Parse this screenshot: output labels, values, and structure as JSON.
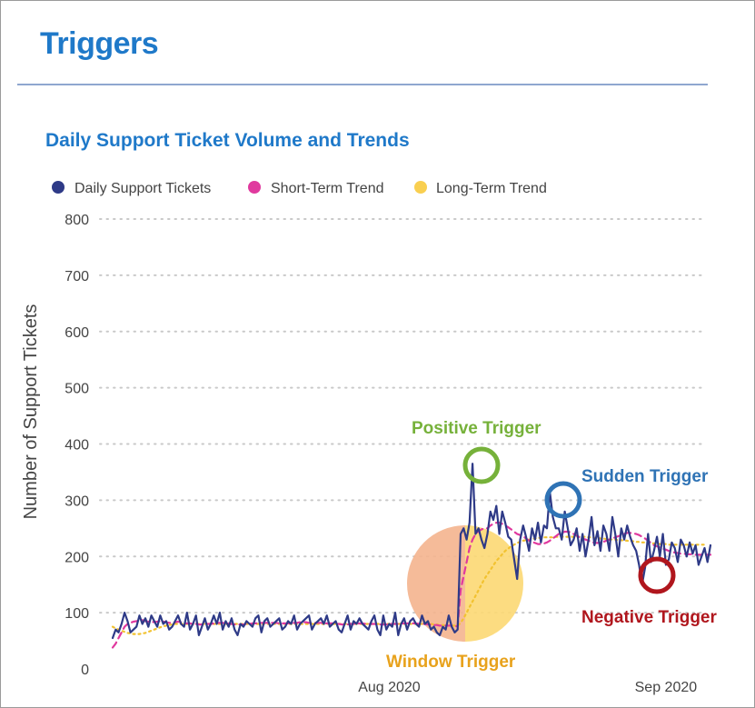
{
  "page": {
    "title": "Triggers"
  },
  "chart_data": {
    "type": "line",
    "title": "Daily Support Ticket Volume and Trends",
    "ylabel": "Number of Support Tickets",
    "xlabel": "",
    "ylim": [
      0,
      800
    ],
    "yticks": [
      0,
      100,
      200,
      300,
      400,
      500,
      600,
      700,
      800
    ],
    "xticks": [
      {
        "label": "Aug 2020",
        "day": 31
      },
      {
        "label": "Sep 2020",
        "day": 62
      }
    ],
    "grid": true,
    "legend_position": "top-left",
    "series": [
      {
        "name": "Daily Support Tickets",
        "color": "#2e3a87",
        "values": [
          55,
          70,
          65,
          80,
          100,
          85,
          65,
          70,
          75,
          95,
          80,
          90,
          75,
          95,
          85,
          75,
          95,
          80,
          85,
          70,
          75,
          85,
          95,
          80,
          75,
          100,
          70,
          80,
          95,
          60,
          75,
          90,
          70,
          80,
          95,
          80,
          100,
          70,
          85,
          75,
          90,
          70,
          60,
          80,
          75,
          85,
          80,
          75,
          90,
          95,
          65,
          85,
          90,
          75,
          80,
          85,
          90,
          70,
          75,
          85,
          80,
          95,
          70,
          80,
          85,
          90,
          95,
          70,
          80,
          85,
          90,
          80,
          95,
          75,
          80,
          85,
          70,
          65,
          80,
          95,
          70,
          85,
          80,
          90,
          80,
          75,
          70,
          85,
          95,
          70,
          60,
          95,
          70,
          80,
          75,
          100,
          60,
          80,
          90,
          70,
          85,
          90,
          80,
          75,
          95,
          80,
          85,
          70,
          75,
          65,
          60,
          75,
          70,
          95,
          75,
          65,
          70,
          240,
          250,
          230,
          260,
          365,
          240,
          250,
          230,
          215,
          240,
          280,
          265,
          290,
          240,
          280,
          260,
          235,
          230,
          195,
          160,
          230,
          255,
          235,
          210,
          250,
          230,
          260,
          225,
          255,
          250,
          315,
          270,
          250,
          250,
          230,
          280,
          250,
          220,
          230,
          250,
          210,
          240,
          200,
          230,
          270,
          220,
          245,
          210,
          255,
          240,
          210,
          270,
          240,
          200,
          250,
          230,
          255,
          235,
          220,
          210,
          185,
          150,
          180,
          240,
          190,
          210,
          235,
          200,
          240,
          185,
          195,
          225,
          215,
          190,
          230,
          220,
          200,
          225,
          205,
          220,
          185,
          200,
          215,
          190,
          220
        ]
      },
      {
        "name": "Short-Term Trend",
        "color": "#e0399e",
        "values": [
          38,
          45,
          55,
          65,
          75,
          80,
          82,
          84,
          85,
          86,
          87,
          85,
          84,
          84,
          83,
          84,
          85,
          84,
          83,
          82,
          82,
          83,
          84,
          83,
          82,
          81,
          81,
          80,
          80,
          79,
          79,
          80,
          80,
          80,
          81,
          82,
          82,
          82,
          81,
          81,
          80,
          79,
          79,
          79,
          79,
          80,
          80,
          81,
          81,
          82,
          82,
          82,
          82,
          82,
          82,
          82,
          81,
          81,
          81,
          81,
          81,
          82,
          82,
          83,
          83,
          83,
          82,
          82,
          82,
          82,
          82,
          81,
          81,
          81,
          81,
          80,
          80,
          79,
          79,
          79,
          80,
          80,
          80,
          81,
          81,
          80,
          80,
          80,
          80,
          79,
          79,
          79,
          79,
          80,
          80,
          80,
          80,
          81,
          81,
          81,
          81,
          81,
          81,
          80,
          80,
          80,
          79,
          79,
          78,
          78,
          77,
          77,
          77,
          77,
          77,
          76,
          76,
          140,
          165,
          190,
          215,
          230,
          240,
          245,
          248,
          250,
          250,
          255,
          258,
          260,
          260,
          258,
          255,
          252,
          248,
          244,
          240,
          238,
          236,
          232,
          228,
          226,
          224,
          222,
          222,
          223,
          225,
          228,
          232,
          236,
          240,
          242,
          244,
          244,
          243,
          240,
          237,
          234,
          232,
          230,
          228,
          226,
          224,
          224,
          225,
          226,
          228,
          230,
          232,
          234,
          236,
          238,
          240,
          242,
          242,
          241,
          240,
          238,
          235,
          232,
          228,
          224,
          220,
          218,
          216,
          214,
          212,
          210,
          208,
          207,
          206,
          205,
          205,
          204,
          204,
          204,
          203,
          203,
          203,
          203,
          203,
          203
        ]
      },
      {
        "name": "Long-Term Trend",
        "color": "#f2c230",
        "values": [
          75,
          72,
          70,
          68,
          66,
          64,
          63,
          62,
          62,
          62,
          63,
          64,
          66,
          68,
          70,
          72,
          74,
          76,
          77,
          78,
          79,
          80,
          80,
          80,
          80,
          80,
          80,
          80,
          80,
          80,
          80,
          80,
          80,
          80,
          80,
          80,
          80,
          80,
          80,
          80,
          80,
          80,
          80,
          80,
          80,
          80,
          80,
          80,
          80,
          80,
          80,
          80,
          80,
          80,
          80,
          80,
          80,
          80,
          80,
          80,
          80,
          80,
          80,
          80,
          80,
          80,
          80,
          80,
          80,
          80,
          80,
          80,
          80,
          80,
          80,
          80,
          80,
          80,
          80,
          80,
          80,
          80,
          80,
          80,
          80,
          80,
          80,
          80,
          80,
          80,
          80,
          80,
          80,
          80,
          80,
          80,
          80,
          80,
          80,
          80,
          80,
          80,
          80,
          80,
          80,
          80,
          80,
          80,
          79,
          79,
          78,
          78,
          77,
          77,
          77,
          77,
          77,
          82,
          90,
          100,
          110,
          120,
          130,
          140,
          150,
          160,
          168,
          176,
          184,
          192,
          198,
          204,
          210,
          214,
          218,
          221,
          224,
          226,
          228,
          229,
          230,
          231,
          232,
          233,
          233,
          234,
          234,
          234,
          234,
          235,
          235,
          235,
          235,
          235,
          235,
          235,
          235,
          235,
          235,
          235,
          234,
          234,
          233,
          233,
          232,
          232,
          231,
          231,
          230,
          230,
          229,
          229,
          228,
          228,
          227,
          227,
          226,
          226,
          225,
          225,
          224,
          224,
          223,
          223,
          222,
          222,
          222,
          221,
          221,
          221,
          221,
          221,
          221,
          221,
          221,
          221,
          221,
          221,
          221,
          221
        ]
      }
    ],
    "annotations": [
      {
        "label": "Positive Trigger",
        "color": "#76b13a"
      },
      {
        "label": "Sudden Trigger",
        "color": "#2f73b5"
      },
      {
        "label": "Negative Trigger",
        "color": "#b0161d"
      },
      {
        "label": "Window Trigger",
        "color": "#e8a21c"
      }
    ]
  }
}
